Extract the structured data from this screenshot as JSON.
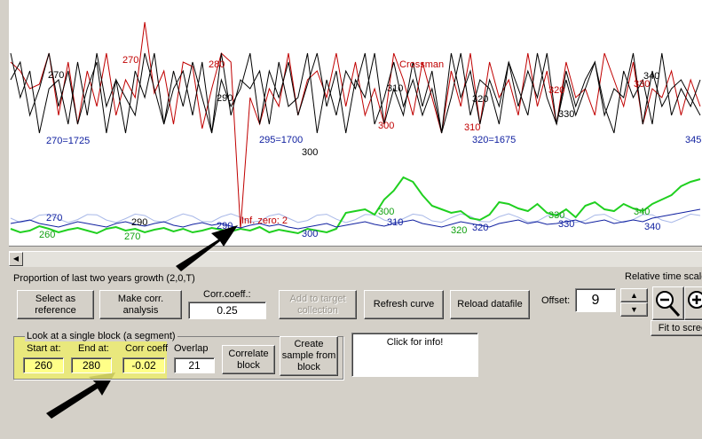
{
  "chart_data": {
    "type": "line",
    "series": [
      {
        "name": "",
        "color": "#c00000",
        "values": [
          70,
          80,
          100,
          95,
          60,
          130,
          70,
          140,
          80,
          120,
          60,
          130,
          90,
          110,
          25,
          105,
          80,
          140,
          70,
          75,
          145,
          100,
          60,
          70,
          258,
          110,
          140,
          100,
          120,
          60,
          130,
          90,
          80,
          110,
          60,
          120,
          70,
          130,
          100,
          140,
          60,
          90,
          130,
          70,
          110,
          150,
          80,
          120,
          60,
          140,
          70,
          110,
          90,
          130,
          60,
          120,
          80,
          140,
          70,
          110,
          100,
          130,
          60,
          90,
          120,
          70,
          140,
          100,
          110,
          80,
          130,
          90,
          120
        ]
      },
      {
        "name": "",
        "color": "#000000",
        "values": [
          60,
          110,
          80,
          150,
          100,
          90,
          140,
          70,
          130,
          60,
          120,
          90,
          150,
          80,
          110,
          60,
          140,
          100,
          80,
          130,
          70,
          150,
          90,
          120,
          100,
          60,
          140,
          80,
          110,
          70,
          130,
          95,
          60,
          120,
          80,
          150,
          90,
          110,
          60,
          140,
          100,
          130,
          70,
          120,
          80,
          150,
          110,
          60,
          130,
          90,
          100,
          140,
          70,
          120,
          80,
          110,
          60,
          140,
          90,
          130,
          100,
          70,
          120,
          150,
          80,
          110,
          90,
          140,
          60,
          130,
          100,
          120,
          90
        ]
      },
      {
        "name": "",
        "color": "#000000",
        "values": [
          90,
          70,
          130,
          100,
          60,
          120,
          80,
          140,
          100,
          70,
          150,
          90,
          110,
          130,
          60,
          100,
          140,
          80,
          120,
          70,
          110,
          150,
          60,
          130,
          90,
          100,
          80,
          140,
          70,
          120,
          110,
          60,
          150,
          90,
          130,
          80,
          100,
          60,
          140,
          110,
          70,
          120,
          90,
          130,
          100,
          150,
          60,
          110,
          80,
          140,
          90,
          120,
          70,
          100,
          130,
          60,
          110,
          140,
          80,
          120,
          90,
          70,
          130,
          100,
          110,
          60,
          140,
          80,
          120,
          100,
          90,
          110,
          130
        ]
      },
      {
        "name": "",
        "color": "#20d020",
        "values": [
          258,
          262,
          260,
          255,
          258,
          262,
          259,
          257,
          260,
          263,
          258,
          256,
          260,
          258,
          262,
          259,
          257,
          261,
          258,
          262,
          260,
          257,
          259,
          261,
          258,
          260,
          256,
          262,
          259,
          261,
          263,
          258,
          260,
          262,
          258,
          240,
          238,
          236,
          242,
          225,
          215,
          200,
          205,
          220,
          232,
          236,
          240,
          238,
          246,
          248,
          242,
          228,
          230,
          235,
          238,
          230,
          240,
          243,
          236,
          245,
          232,
          228,
          236,
          238,
          230,
          235,
          238,
          230,
          225,
          220,
          210,
          205,
          202
        ]
      },
      {
        "name": "",
        "color": "#1020a0",
        "values": [
          252,
          250,
          248,
          252,
          254,
          256,
          253,
          250,
          252,
          254,
          256,
          252,
          250,
          253,
          255,
          252,
          250,
          254,
          256,
          253,
          251,
          254,
          252,
          255,
          257,
          254,
          252,
          255,
          253,
          256,
          258,
          256,
          254,
          252,
          256,
          254,
          252,
          250,
          253,
          255,
          252,
          250,
          248,
          252,
          254,
          256,
          253,
          250,
          252,
          254,
          256,
          252,
          250,
          248,
          252,
          250,
          253,
          252,
          250,
          248,
          252,
          250,
          248,
          252,
          250,
          248,
          250,
          246,
          244,
          242,
          240,
          238,
          236
        ]
      }
    ],
    "annotations_red": [
      "270",
      "280",
      "Crossman",
      "300",
      "310",
      "320",
      "330"
    ],
    "annotations_black": [
      "270",
      "290",
      "300",
      "310",
      "320",
      "330",
      "340"
    ],
    "annotations_blue": [
      "270=1725",
      "295=1700",
      "320=1675",
      "345"
    ],
    "annotations_lower": [
      "270",
      "290",
      "290",
      "Inf. zero: 2",
      "300",
      "300",
      "310",
      "320",
      "320",
      "330",
      "330",
      "340",
      "260",
      "270"
    ]
  },
  "controls": {
    "curve_title": "Proportion of last two years growth (2,0,T)",
    "relative_time_scale": "Relative time scale",
    "select_ref": "Select as reference",
    "make_corr": "Make corr. analysis",
    "corr_coeff_label": "Corr.coeff.:",
    "corr_coeff_value": "0.25",
    "add_target": "Add to target collection",
    "refresh": "Refresh curve",
    "reload": "Reload datafile",
    "offset_label": "Offset:",
    "offset_value": "9",
    "fit_to_screen": "Fit to screen"
  },
  "segment": {
    "group_title": "Look at a single block (a segment)",
    "start_label": "Start at:",
    "start_value": "260",
    "end_label": "End at:",
    "end_value": "280",
    "corr_label": "Corr coeff",
    "corr_value": "-0.02",
    "overlap_label": "Overlap",
    "overlap_value": "21",
    "correlate_button": "Correlate block",
    "create_sample_button": "Create sample from block"
  },
  "info": {
    "text": "Click for info!"
  }
}
